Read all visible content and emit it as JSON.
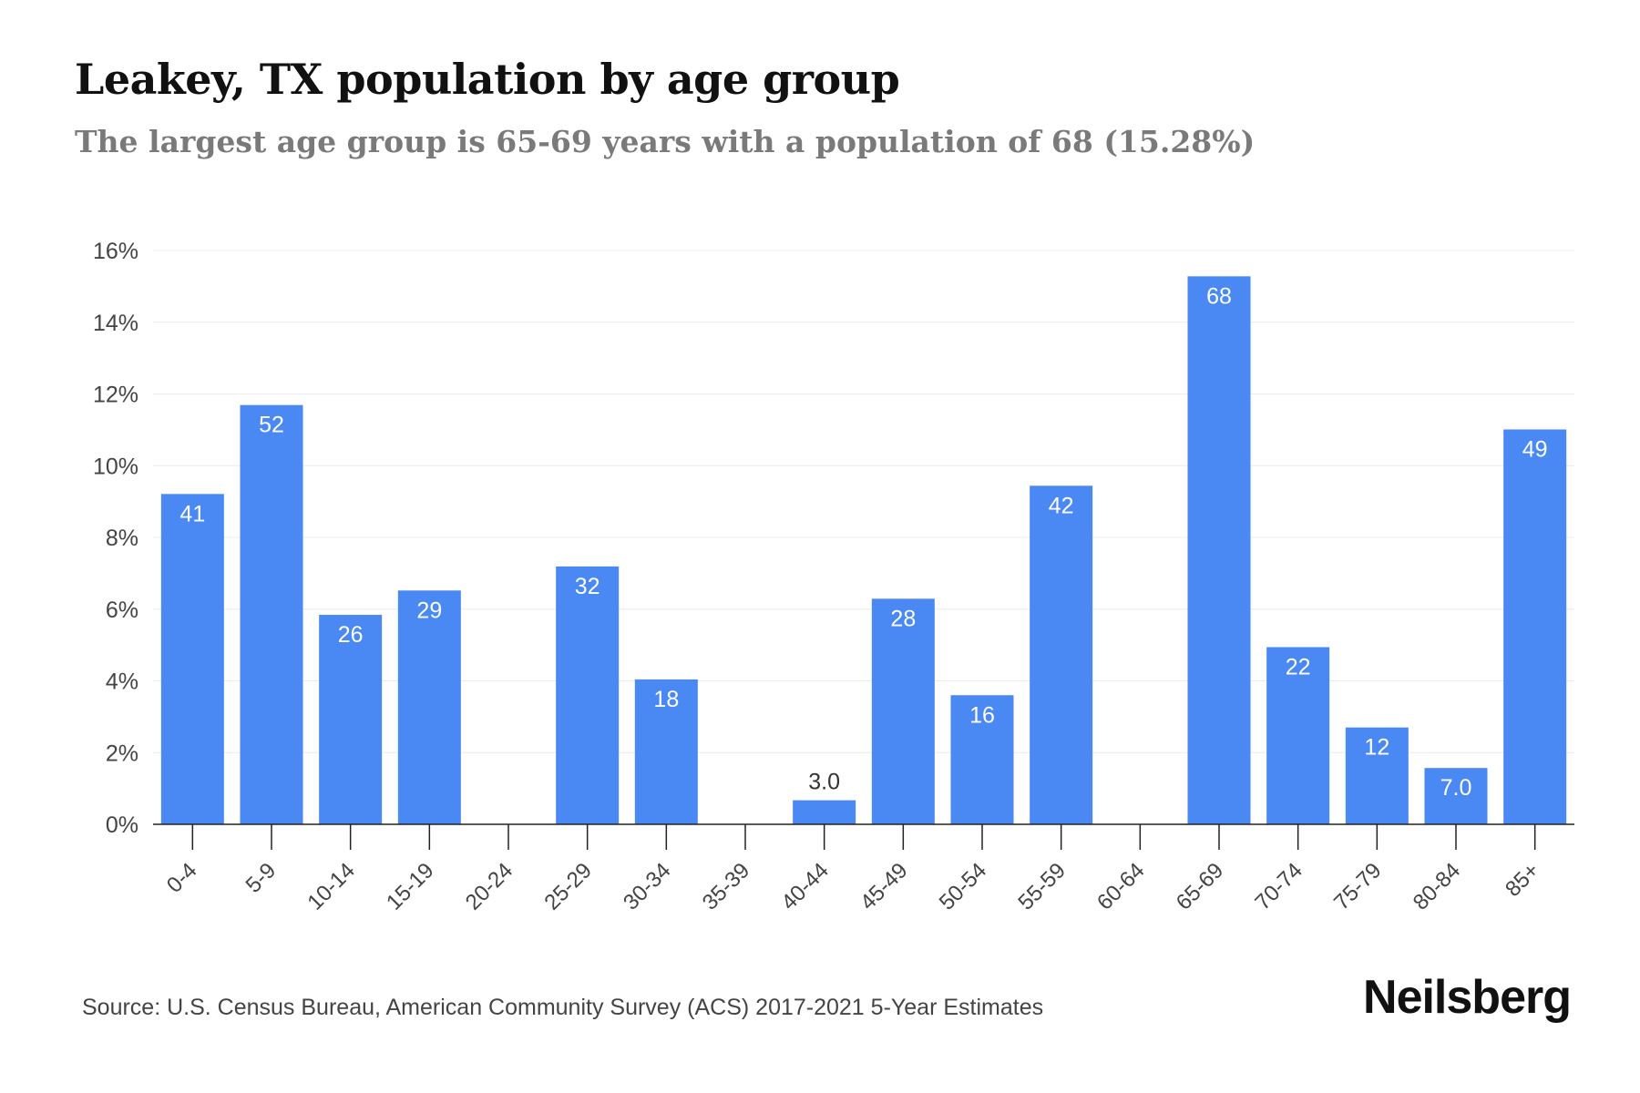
{
  "title": "Leakey, TX population by age group",
  "subtitle": "The largest age group is 65-69 years with a population of 68 (15.28%)",
  "source": "Source: U.S. Census Bureau, American Community Survey (ACS) 2017-2021 5-Year Estimates",
  "brand": "Neilsberg",
  "colors": {
    "bar": "#4a89f3",
    "bar_label": "#ffffff",
    "bar_label_outside": "#333333",
    "axis": "#222222",
    "grid": "#ececec",
    "tick_text": "#444444"
  },
  "chart_data": {
    "type": "bar",
    "categories": [
      "0-4",
      "5-9",
      "10-14",
      "15-19",
      "20-24",
      "25-29",
      "30-34",
      "35-39",
      "40-44",
      "45-49",
      "50-54",
      "55-59",
      "60-64",
      "65-69",
      "70-74",
      "75-79",
      "80-84",
      "85+"
    ],
    "values": [
      9.21,
      11.69,
      5.84,
      6.52,
      0,
      7.19,
      4.04,
      0,
      0.67,
      6.29,
      3.6,
      9.44,
      0,
      15.28,
      4.94,
      2.7,
      1.57,
      11.01
    ],
    "data_labels": [
      "41",
      "52",
      "26",
      "29",
      "",
      "32",
      "18",
      "",
      "3.0",
      "28",
      "16",
      "42",
      "",
      "68",
      "22",
      "12",
      "7.0",
      "49"
    ],
    "y_ticks": [
      "0%",
      "2%",
      "4%",
      "6%",
      "8%",
      "10%",
      "12%",
      "14%",
      "16%"
    ],
    "ylim": [
      0,
      16
    ],
    "grid": true,
    "legend": "none"
  }
}
